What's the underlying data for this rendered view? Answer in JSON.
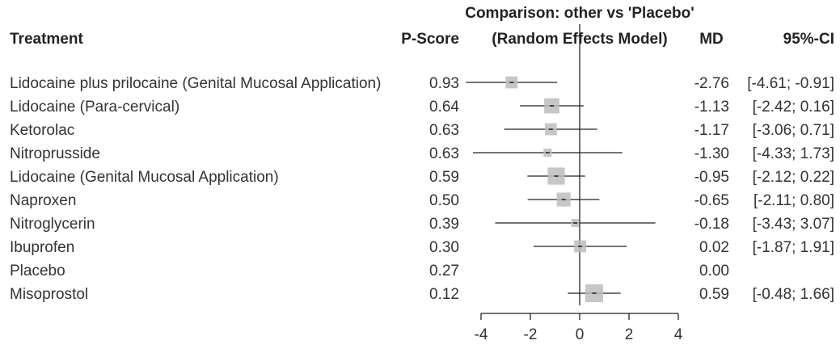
{
  "headers": {
    "treatment": "Treatment",
    "pscore": "P-Score",
    "comparison_line1": "Comparison: other vs 'Placebo'",
    "comparison_line2": "(Random Effects Model)",
    "md": "MD",
    "ci": "95%-CI"
  },
  "chart_data": {
    "type": "forest",
    "reference_line": 0,
    "xlim": [
      -4.5,
      4.5
    ],
    "x_ticks": [
      "-4",
      "-2",
      "0",
      "2",
      "4"
    ],
    "x_tick_values": [
      -4,
      -2,
      0,
      2,
      4
    ],
    "rows": [
      {
        "treatment": "Lidocaine plus prilocaine (Genital Mucosal Application)",
        "pscore": "0.93",
        "md": -2.76,
        "lower": -4.61,
        "upper": -0.91,
        "weight": 0.55,
        "md_text": "-2.76",
        "ci_text": "[-4.61; -0.91]"
      },
      {
        "treatment": "Lidocaine (Para-cervical)",
        "pscore": "0.64",
        "md": -1.13,
        "lower": -2.42,
        "upper": 0.16,
        "weight": 0.8,
        "md_text": "-1.13",
        "ci_text": "[-2.42;  0.16]"
      },
      {
        "treatment": "Ketorolac",
        "pscore": "0.63",
        "md": -1.17,
        "lower": -3.06,
        "upper": 0.71,
        "weight": 0.55,
        "md_text": "-1.17",
        "ci_text": "[-3.06;  0.71]"
      },
      {
        "treatment": "Nitroprusside",
        "pscore": "0.63",
        "md": -1.3,
        "lower": -4.33,
        "upper": 1.73,
        "weight": 0.25,
        "md_text": "-1.30",
        "ci_text": "[-4.33;  1.73]"
      },
      {
        "treatment": "Lidocaine (Genital Mucosal Application)",
        "pscore": "0.59",
        "md": -0.95,
        "lower": -2.12,
        "upper": 0.22,
        "weight": 0.95,
        "md_text": "-0.95",
        "ci_text": "[-2.12;  0.22]"
      },
      {
        "treatment": "Naproxen",
        "pscore": "0.50",
        "md": -0.65,
        "lower": -2.11,
        "upper": 0.8,
        "weight": 0.7,
        "md_text": "-0.65",
        "ci_text": "[-2.11;  0.80]"
      },
      {
        "treatment": "Nitroglycerin",
        "pscore": "0.39",
        "md": -0.18,
        "lower": -3.43,
        "upper": 3.07,
        "weight": 0.25,
        "md_text": "-0.18",
        "ci_text": "[-3.43;  3.07]"
      },
      {
        "treatment": "Ibuprofen",
        "pscore": "0.30",
        "md": 0.02,
        "lower": -1.87,
        "upper": 1.91,
        "weight": 0.55,
        "md_text": "0.02",
        "ci_text": "[-1.87;  1.91]"
      },
      {
        "treatment": "Placebo",
        "pscore": "0.27",
        "md": 0.0,
        "lower": null,
        "upper": null,
        "weight": 0,
        "md_text": "0.00",
        "ci_text": ""
      },
      {
        "treatment": "Misoprostol",
        "pscore": "0.12",
        "md": 0.59,
        "lower": -0.48,
        "upper": 1.66,
        "weight": 1.0,
        "md_text": "0.59",
        "ci_text": "[-0.48;  1.66]"
      }
    ]
  }
}
